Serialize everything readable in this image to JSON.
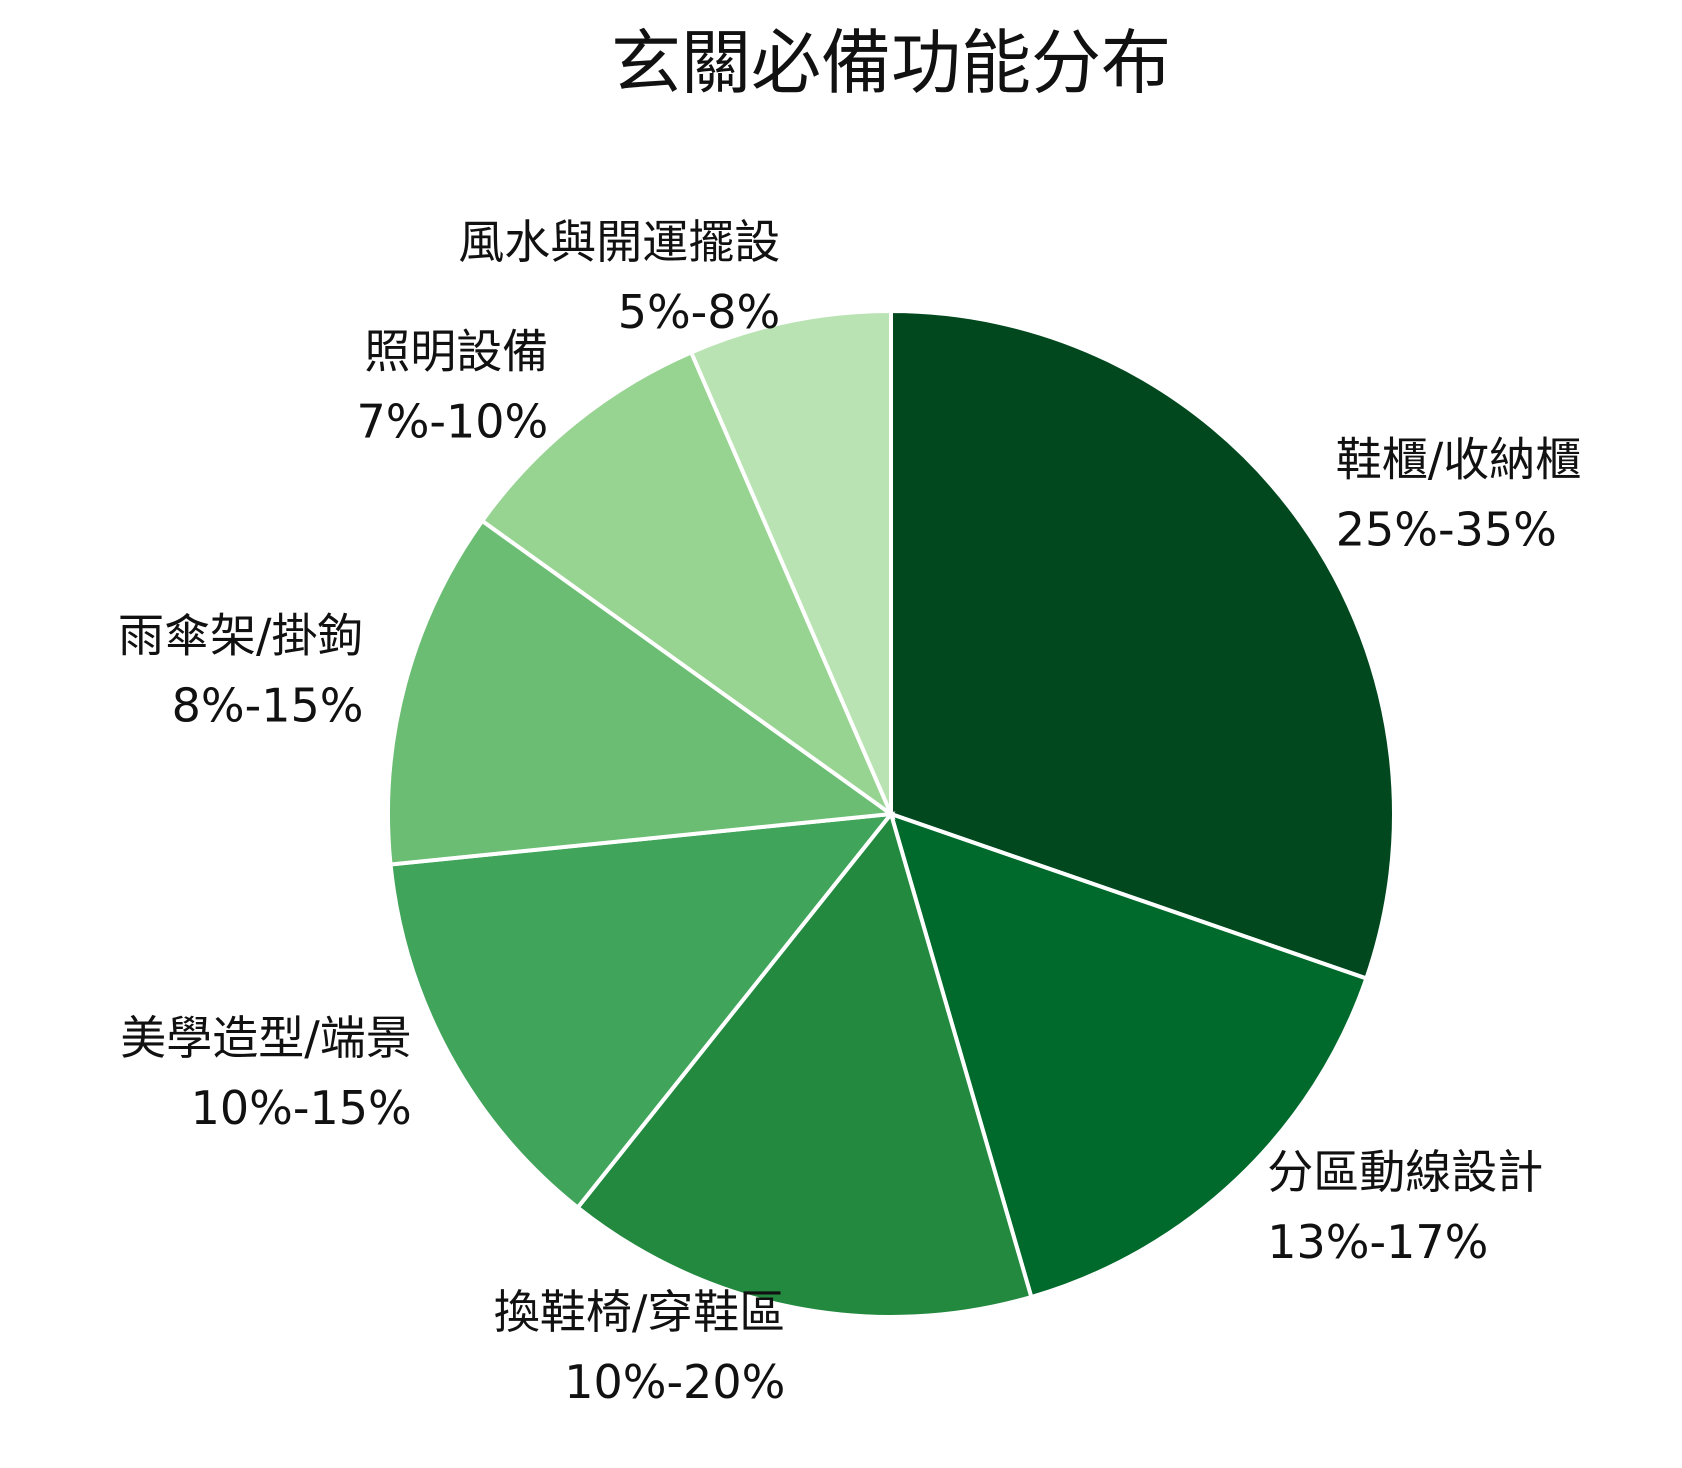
{
  "chart_data": {
    "type": "pie",
    "title": "玄關必備功能分布",
    "categories": [
      "鞋櫃/收納櫃",
      "分區動線設計",
      "換鞋椅/穿鞋區",
      "美學造型/端景",
      "雨傘架/掛鉤",
      "照明設備",
      "風水與開運擺設"
    ],
    "ranges": [
      "25%-35%",
      "13%-17%",
      "10%-20%",
      "10%-15%",
      "8%-15%",
      "7%-10%",
      "5%-8%"
    ],
    "values": [
      30.3,
      15.2,
      15.2,
      12.7,
      11.5,
      8.6,
      6.5
    ],
    "colors": [
      "#02481f",
      "#006a2c",
      "#22893f",
      "#40a45a",
      "#6abd72",
      "#97d391",
      "#b9e3b3"
    ]
  }
}
